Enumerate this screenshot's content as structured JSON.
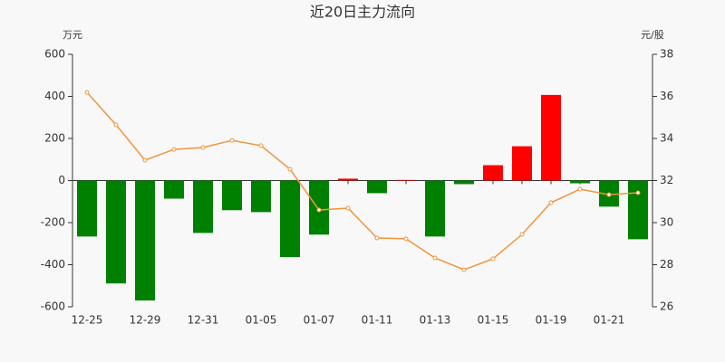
{
  "chart_data": {
    "type": "bar-line",
    "title": "近20日主力流向",
    "y_label": "万元",
    "y2_label": "元/股",
    "categories": [
      "12-25",
      null,
      "12-29",
      null,
      "12-31",
      null,
      "01-05",
      null,
      "01-07",
      null,
      "01-11",
      null,
      "01-13",
      null,
      "01-15",
      null,
      "01-19",
      null,
      "01-21",
      null
    ],
    "series": [
      {
        "type": "bar",
        "positive_color": "#ff0000",
        "negative_color": "#008000",
        "values": [
          -266,
          -489,
          -570,
          -86,
          -249,
          -141,
          -150,
          -364,
          -257,
          9,
          -60,
          3,
          -266,
          -17,
          73,
          163,
          407,
          -13,
          -124,
          -279
        ]
      },
      {
        "type": "line",
        "axis": "y2",
        "color": "#f0953f",
        "values": [
          36.19,
          34.65,
          32.97,
          33.48,
          33.57,
          33.91,
          33.66,
          32.54,
          30.6,
          30.69,
          29.27,
          29.23,
          28.32,
          27.76,
          28.28,
          29.44,
          30.95,
          31.59,
          31.33,
          31.42
        ]
      }
    ],
    "ylim": [
      -600,
      600
    ],
    "yticks": [
      -600,
      -400,
      -200,
      0,
      200,
      400,
      600
    ],
    "y2lim": [
      26,
      38
    ],
    "y2ticks": [
      26,
      28,
      30,
      32,
      34,
      36,
      38
    ]
  }
}
